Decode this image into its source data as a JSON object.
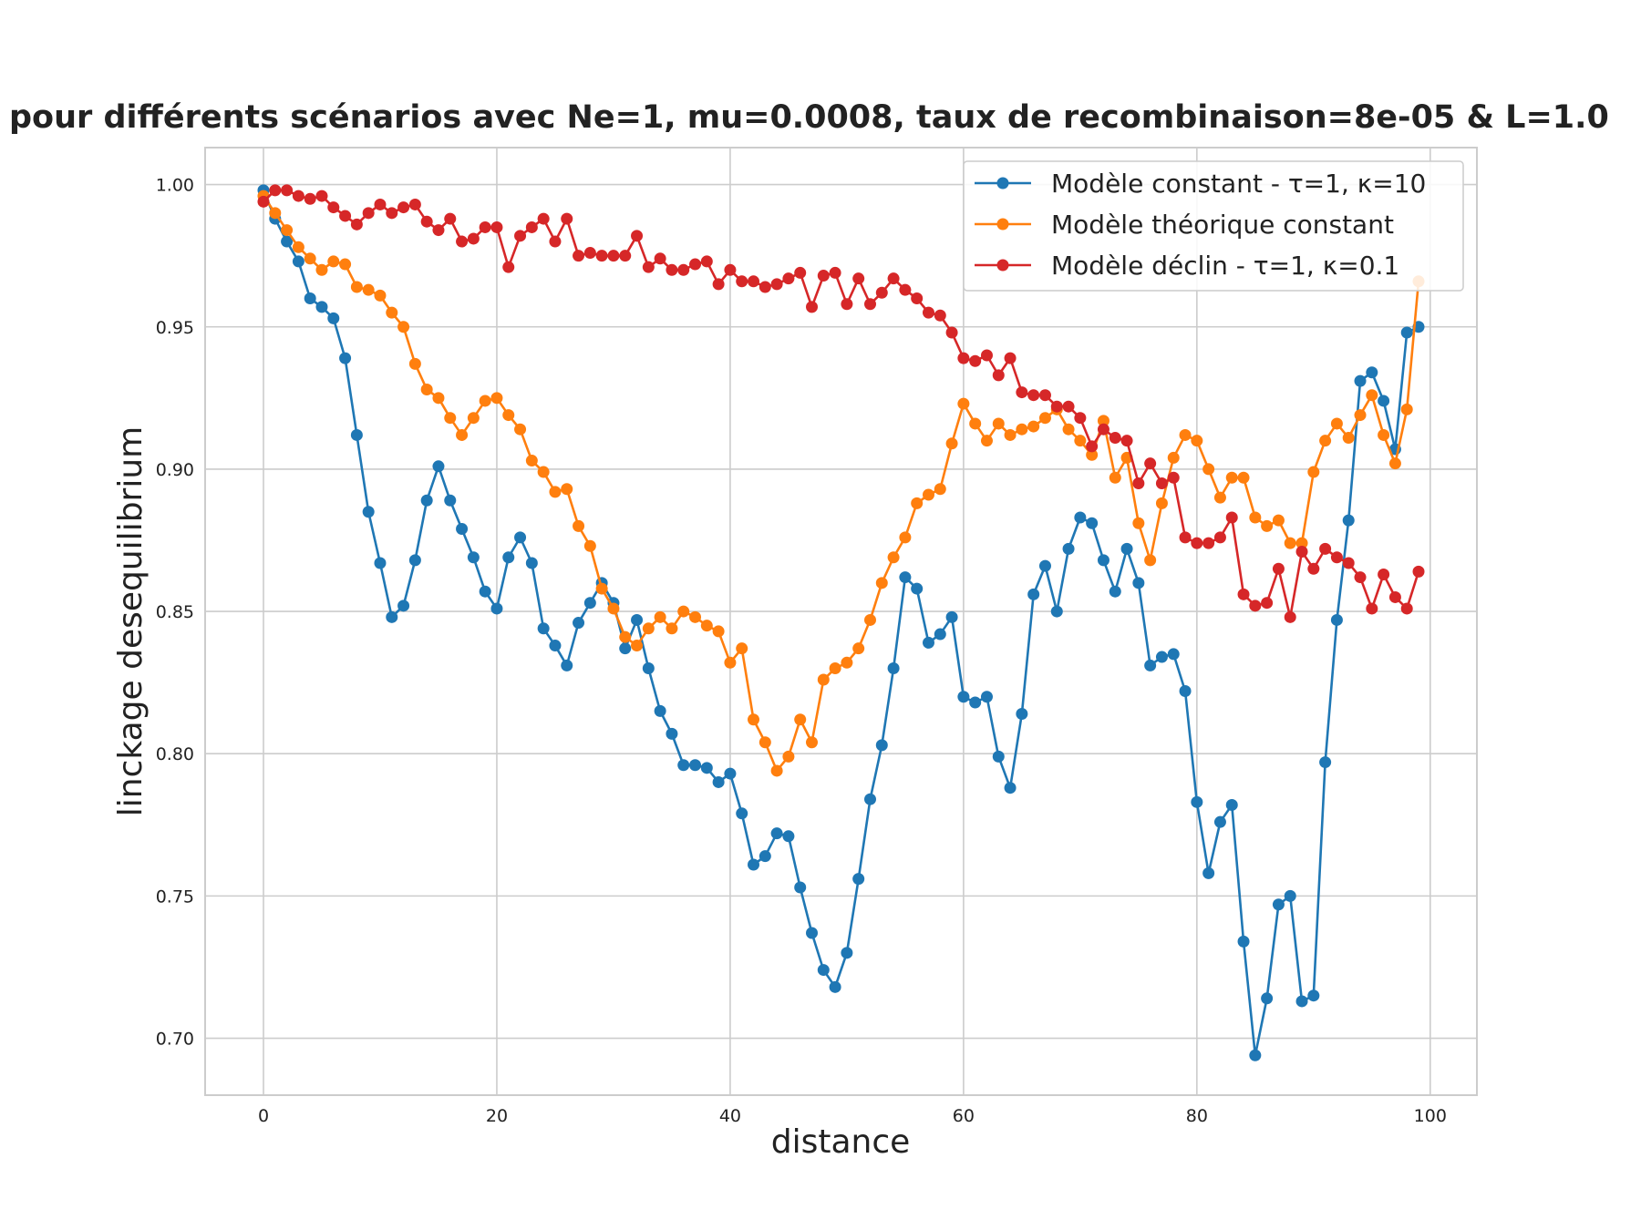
{
  "chart_data": {
    "type": "line",
    "title": "pour différents scénarios avec Ne=1, mu=0.0008, taux de recombinaison=8e-05 & L=1.0",
    "xlabel": "distance",
    "ylabel": "linckage desequilibrium",
    "xlim": [
      -5,
      104
    ],
    "ylim": [
      0.68,
      1.013
    ],
    "xticks": [
      0,
      20,
      40,
      60,
      80,
      100
    ],
    "xtick_labels": [
      "0",
      "20",
      "40",
      "60",
      "80",
      "100"
    ],
    "yticks": [
      0.7,
      0.75,
      0.8,
      0.85,
      0.9,
      0.95,
      1.0
    ],
    "ytick_labels": [
      "0.70",
      "0.75",
      "0.80",
      "0.85",
      "0.90",
      "0.95",
      "1.00"
    ],
    "grid": true,
    "legend_position": "top-right",
    "x": [
      0,
      1,
      2,
      3,
      4,
      5,
      6,
      7,
      8,
      9,
      10,
      11,
      12,
      13,
      14,
      15,
      16,
      17,
      18,
      19,
      20,
      21,
      22,
      23,
      24,
      25,
      26,
      27,
      28,
      29,
      30,
      31,
      32,
      33,
      34,
      35,
      36,
      37,
      38,
      39,
      40,
      41,
      42,
      43,
      44,
      45,
      46,
      47,
      48,
      49,
      50,
      51,
      52,
      53,
      54,
      55,
      56,
      57,
      58,
      59,
      60,
      61,
      62,
      63,
      64,
      65,
      66,
      67,
      68,
      69,
      70,
      71,
      72,
      73,
      74,
      75,
      76,
      77,
      78,
      79,
      80,
      81,
      82,
      83,
      84,
      85,
      86,
      87,
      88,
      89,
      90,
      91,
      92,
      93,
      94,
      95,
      96,
      97,
      98,
      99
    ],
    "series": [
      {
        "name": "Modèle constant - τ=1, κ=10",
        "color": "#1f77b4",
        "values": [
          0.998,
          0.988,
          0.98,
          0.973,
          0.96,
          0.957,
          0.953,
          0.939,
          0.912,
          0.885,
          0.867,
          0.848,
          0.852,
          0.868,
          0.889,
          0.901,
          0.889,
          0.879,
          0.869,
          0.857,
          0.851,
          0.869,
          0.876,
          0.867,
          0.844,
          0.838,
          0.831,
          0.846,
          0.853,
          0.86,
          0.853,
          0.837,
          0.847,
          0.83,
          0.815,
          0.807,
          0.796,
          0.796,
          0.795,
          0.79,
          0.793,
          0.779,
          0.761,
          0.764,
          0.772,
          0.771,
          0.753,
          0.737,
          0.724,
          0.718,
          0.73,
          0.756,
          0.784,
          0.803,
          0.83,
          0.862,
          0.858,
          0.839,
          0.842,
          0.848,
          0.82,
          0.818,
          0.82,
          0.799,
          0.788,
          0.814,
          0.856,
          0.866,
          0.85,
          0.872,
          0.883,
          0.881,
          0.868,
          0.857,
          0.872,
          0.86,
          0.831,
          0.834,
          0.835,
          0.822,
          0.783,
          0.758,
          0.776,
          0.782,
          0.734,
          0.694,
          0.714,
          0.747,
          0.75,
          0.713,
          0.715,
          0.797,
          0.847,
          0.882,
          0.931,
          0.934,
          0.924,
          0.907,
          0.948,
          0.95
        ]
      },
      {
        "name": "Modèle théorique constant",
        "color": "#ff7f0e",
        "values": [
          0.996,
          0.99,
          0.984,
          0.978,
          0.974,
          0.97,
          0.973,
          0.972,
          0.964,
          0.963,
          0.961,
          0.955,
          0.95,
          0.937,
          0.928,
          0.925,
          0.918,
          0.912,
          0.918,
          0.924,
          0.925,
          0.919,
          0.914,
          0.903,
          0.899,
          0.892,
          0.893,
          0.88,
          0.873,
          0.858,
          0.851,
          0.841,
          0.838,
          0.844,
          0.848,
          0.844,
          0.85,
          0.848,
          0.845,
          0.843,
          0.832,
          0.837,
          0.812,
          0.804,
          0.794,
          0.799,
          0.812,
          0.804,
          0.826,
          0.83,
          0.832,
          0.837,
          0.847,
          0.86,
          0.869,
          0.876,
          0.888,
          0.891,
          0.893,
          0.909,
          0.923,
          0.916,
          0.91,
          0.916,
          0.912,
          0.914,
          0.915,
          0.918,
          0.921,
          0.914,
          0.91,
          0.905,
          0.917,
          0.897,
          0.904,
          0.881,
          0.868,
          0.888,
          0.904,
          0.912,
          0.91,
          0.9,
          0.89,
          0.897,
          0.897,
          0.883,
          0.88,
          0.882,
          0.874,
          0.874,
          0.899,
          0.91,
          0.916,
          0.911,
          0.919,
          0.926,
          0.912,
          0.902,
          0.921,
          0.966
        ]
      },
      {
        "name": "Modèle déclin - τ=1, κ=0.1",
        "color": "#d62728",
        "values": [
          0.994,
          0.998,
          0.998,
          0.996,
          0.995,
          0.996,
          0.992,
          0.989,
          0.986,
          0.99,
          0.993,
          0.99,
          0.992,
          0.993,
          0.987,
          0.984,
          0.988,
          0.98,
          0.981,
          0.985,
          0.985,
          0.971,
          0.982,
          0.985,
          0.988,
          0.98,
          0.988,
          0.975,
          0.976,
          0.975,
          0.975,
          0.975,
          0.982,
          0.971,
          0.974,
          0.97,
          0.97,
          0.972,
          0.973,
          0.965,
          0.97,
          0.966,
          0.966,
          0.964,
          0.965,
          0.967,
          0.969,
          0.957,
          0.968,
          0.969,
          0.958,
          0.967,
          0.958,
          0.962,
          0.967,
          0.963,
          0.96,
          0.955,
          0.954,
          0.948,
          0.939,
          0.938,
          0.94,
          0.933,
          0.939,
          0.927,
          0.926,
          0.926,
          0.922,
          0.922,
          0.918,
          0.908,
          0.914,
          0.911,
          0.91,
          0.895,
          0.902,
          0.895,
          0.897,
          0.876,
          0.874,
          0.874,
          0.876,
          0.883,
          0.856,
          0.852,
          0.853,
          0.865,
          0.848,
          0.871,
          0.865,
          0.872,
          0.869,
          0.867,
          0.862,
          0.851,
          0.863,
          0.855,
          0.851,
          0.864
        ]
      }
    ]
  }
}
